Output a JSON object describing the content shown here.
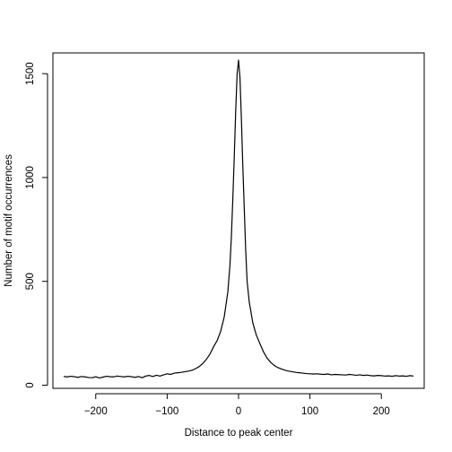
{
  "chart_data": {
    "type": "line",
    "title": "",
    "xlabel": "Distance to peak center",
    "ylabel": "Number of motif occurrences",
    "xlim": [
      -260,
      260
    ],
    "ylim": [
      -15,
      1600
    ],
    "xticks": [
      -200,
      -100,
      0,
      100,
      200
    ],
    "xtick_labels": [
      "−200",
      "−100",
      "0",
      "100",
      "200"
    ],
    "yticks": [
      0,
      500,
      1000,
      1500
    ],
    "ytick_labels": [
      "0",
      "500",
      "1000",
      "1500"
    ],
    "grid": false,
    "legend": "none",
    "line_color": "#000000",
    "series": [
      {
        "x": [
          -245,
          -240,
          -235,
          -230,
          -225,
          -220,
          -215,
          -210,
          -205,
          -200,
          -195,
          -190,
          -185,
          -180,
          -175,
          -170,
          -165,
          -160,
          -155,
          -150,
          -145,
          -140,
          -135,
          -130,
          -125,
          -120,
          -115,
          -110,
          -105,
          -100,
          -95,
          -90,
          -85,
          -80,
          -75,
          -70,
          -65,
          -60,
          -55,
          -50,
          -45,
          -40,
          -35,
          -30,
          -25,
          -20,
          -15,
          -12,
          -10,
          -8,
          -6,
          -4,
          -2,
          0,
          2,
          4,
          6,
          8,
          10,
          12,
          15,
          20,
          25,
          30,
          35,
          40,
          45,
          50,
          55,
          60,
          65,
          70,
          75,
          80,
          85,
          90,
          95,
          100,
          105,
          110,
          115,
          120,
          125,
          130,
          135,
          140,
          145,
          150,
          155,
          160,
          165,
          170,
          175,
          180,
          185,
          190,
          195,
          200,
          205,
          210,
          215,
          220,
          225,
          230,
          235,
          240,
          245
        ],
        "values": [
          42,
          40,
          43,
          41,
          38,
          42,
          40,
          37,
          36,
          41,
          35,
          39,
          43,
          41,
          40,
          44,
          42,
          40,
          43,
          41,
          38,
          42,
          36,
          44,
          47,
          42,
          48,
          44,
          50,
          55,
          52,
          58,
          60,
          62,
          65,
          68,
          72,
          80,
          90,
          105,
          125,
          150,
          185,
          215,
          260,
          330,
          450,
          580,
          720,
          900,
          1100,
          1320,
          1500,
          1565,
          1480,
          1280,
          1050,
          850,
          650,
          500,
          400,
          300,
          240,
          200,
          160,
          130,
          110,
          95,
          85,
          78,
          72,
          68,
          65,
          62,
          60,
          58,
          56,
          55,
          54,
          55,
          53,
          52,
          54,
          50,
          52,
          51,
          50,
          49,
          52,
          50,
          48,
          50,
          47,
          49,
          46,
          45,
          47,
          46,
          44,
          45,
          43,
          46,
          44,
          45,
          43,
          46,
          44
        ]
      }
    ]
  }
}
